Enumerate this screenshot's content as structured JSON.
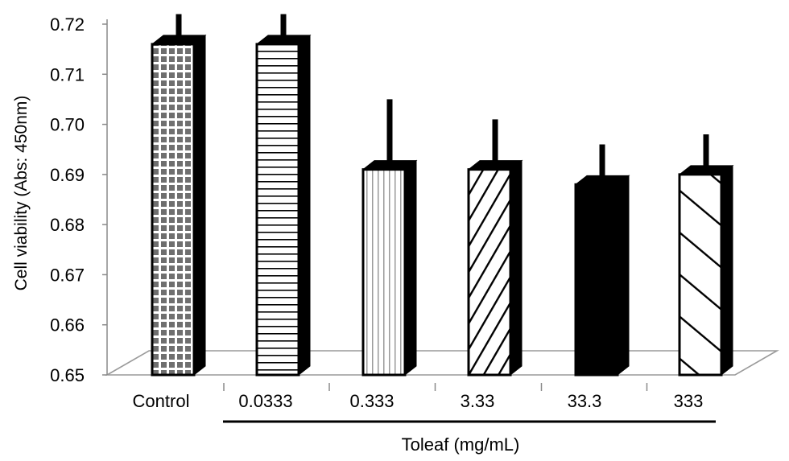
{
  "chart_data": {
    "type": "bar",
    "title": "",
    "ylabel": "Cell viability (Abs: 450nm)",
    "xlabel": "Toleaf (mg/mL)",
    "ylim": [
      0.65,
      0.72
    ],
    "yticks": [
      "0.65",
      "0.66",
      "0.67",
      "0.68",
      "0.69",
      "0.70",
      "0.71",
      "0.72"
    ],
    "categories": [
      "Control",
      "0.0333",
      "0.333",
      "3.33",
      "33.3",
      "333"
    ],
    "values": [
      0.716,
      0.716,
      0.691,
      0.691,
      0.688,
      0.69
    ],
    "errors": [
      0.006,
      0.006,
      0.014,
      0.01,
      0.008,
      0.008
    ],
    "patterns": [
      "brick",
      "horizontal-lines",
      "vertical-lines",
      "diagonal-up",
      "solid",
      "diagonal-down"
    ],
    "bracket_categories": [
      "0.0333",
      "0.333",
      "3.33",
      "33.3",
      "333"
    ],
    "grid": false,
    "legend": "none",
    "style": "3d-bars"
  }
}
